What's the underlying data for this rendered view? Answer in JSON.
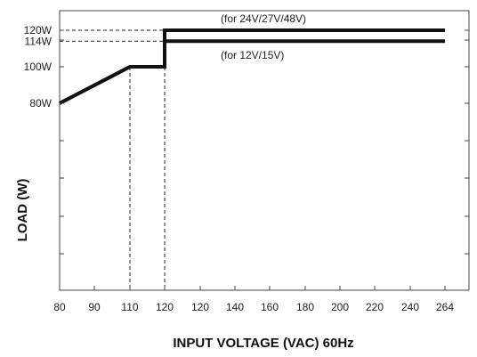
{
  "chart_data": {
    "type": "line",
    "xlabel": "INPUT VOLTAGE (VAC) 60Hz",
    "ylabel": "LOAD (W)",
    "x_ticks": [
      "80",
      "90",
      "110",
      "120",
      "120",
      "140",
      "160",
      "180",
      "200",
      "220",
      "240",
      "264"
    ],
    "y_ticks": [
      {
        "label": "120W",
        "value": 120
      },
      {
        "label": "114W",
        "value": 114
      },
      {
        "label": "100W",
        "value": 100
      },
      {
        "label": "80W",
        "value": 80
      }
    ],
    "ylim": [
      0,
      120
    ],
    "series": [
      {
        "name": "(for 24V/27V/48V)",
        "x": [
          80,
          110,
          120,
          120,
          264
        ],
        "y": [
          80,
          100,
          100,
          120,
          120
        ]
      },
      {
        "name": "(for 12V/15V)",
        "x": [
          80,
          110,
          120,
          120,
          264
        ],
        "y": [
          80,
          100,
          100,
          114,
          114
        ]
      }
    ],
    "reference_lines": {
      "horizontal": [
        120,
        114
      ],
      "vertical": [
        110,
        120
      ]
    },
    "grid": false,
    "legend": "none"
  }
}
